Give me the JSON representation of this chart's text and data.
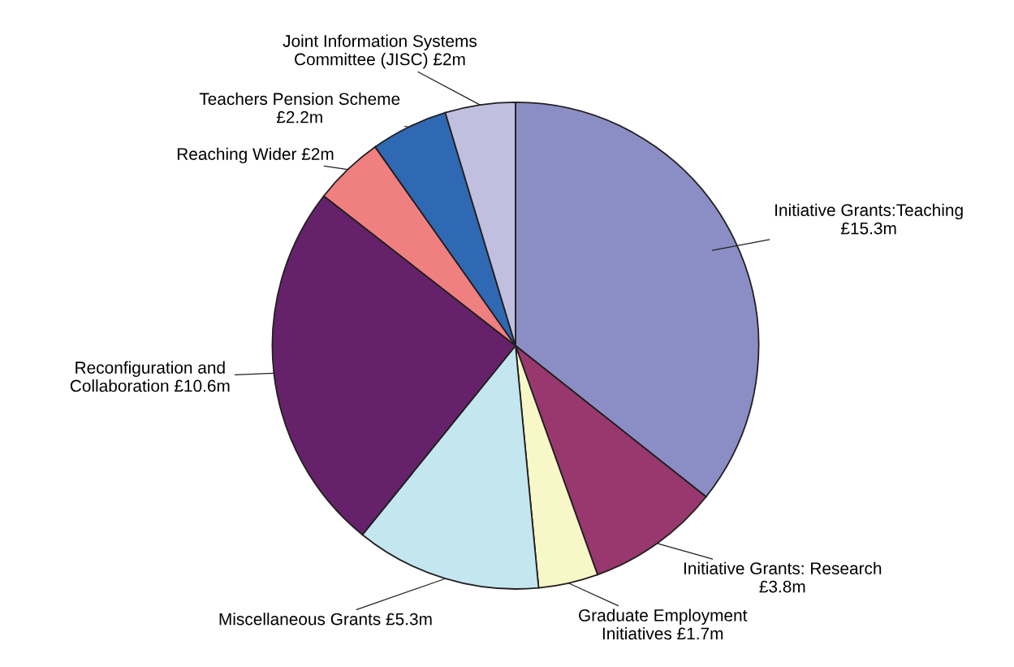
{
  "chart_data": {
    "type": "pie",
    "categories": [
      "Initiative Grants:Teaching\n",
      "Initiative Grants: Research\n",
      "Graduate Employment\nInitiatives",
      "Miscellaneous Grants",
      "Reconfiguration and\nCollaboration",
      "Reaching Wider",
      "Teachers Pension Scheme\n",
      "Joint Information Systems\nCommittee (JISC)"
    ],
    "values": [
      15.3,
      3.8,
      1.7,
      5.3,
      10.6,
      2,
      2.2,
      2
    ],
    "value_labels": [
      "£15.3m",
      "£3.8m",
      "£1.7m",
      "£5.3m",
      "£10.6m",
      "£2m",
      "£2.2m",
      "£2m"
    ],
    "colors": [
      "#8b8ec4",
      "#98386e",
      "#f7f7c8",
      "#c3e6ef",
      "#65226a",
      "#f08080",
      "#2f69b3",
      "#c1bfdf"
    ]
  }
}
